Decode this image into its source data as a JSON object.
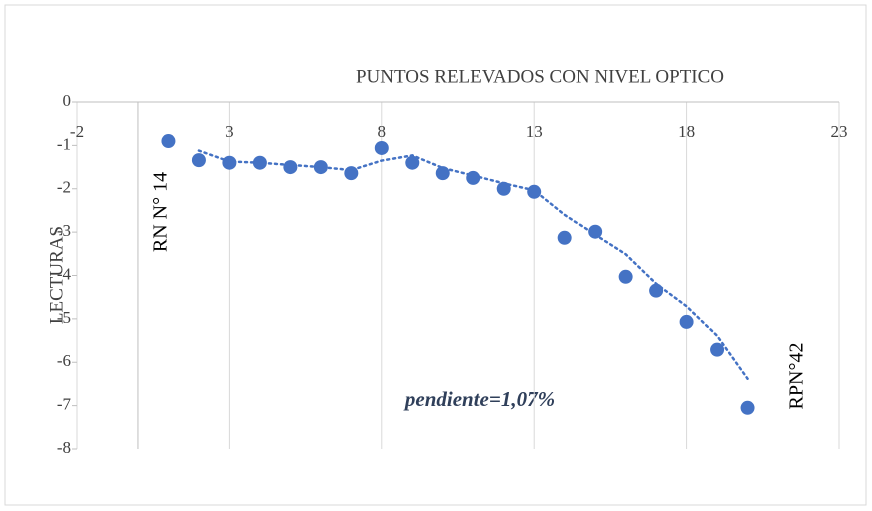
{
  "chart_data": {
    "type": "scatter",
    "title": "PUNTOS RELEVADOS CON NIVEL OPTICO",
    "y_label": "LECTURAS",
    "annotations": [
      "RN N° 14",
      "RPN°42",
      "pendiente=1,07%"
    ],
    "x": [
      1,
      2,
      3,
      4,
      5,
      6,
      7,
      8,
      9,
      10,
      11,
      12,
      13,
      14,
      15,
      16,
      17,
      18,
      19,
      20
    ],
    "series": [
      {
        "color": "#4472c4",
        "values": [
          -0.9,
          -1.34,
          -1.4,
          -1.4,
          -1.5,
          -1.5,
          -1.64,
          -1.06,
          -1.4,
          -1.64,
          -1.75,
          -2.0,
          -2.07,
          -3.13,
          -2.99,
          -4.03,
          -4.35,
          -5.07,
          -5.71,
          -7.05
        ]
      }
    ],
    "trendline": {
      "type": "moving_average",
      "period": 2
    },
    "xlim": [
      -2,
      23
    ],
    "xticks": [
      -2,
      3,
      8,
      13,
      18,
      23
    ],
    "ylim": [
      -8,
      0
    ],
    "yticks": [
      0,
      -1,
      -2,
      -3,
      -4,
      -5,
      -6,
      -7,
      -8
    ],
    "grid": true
  }
}
